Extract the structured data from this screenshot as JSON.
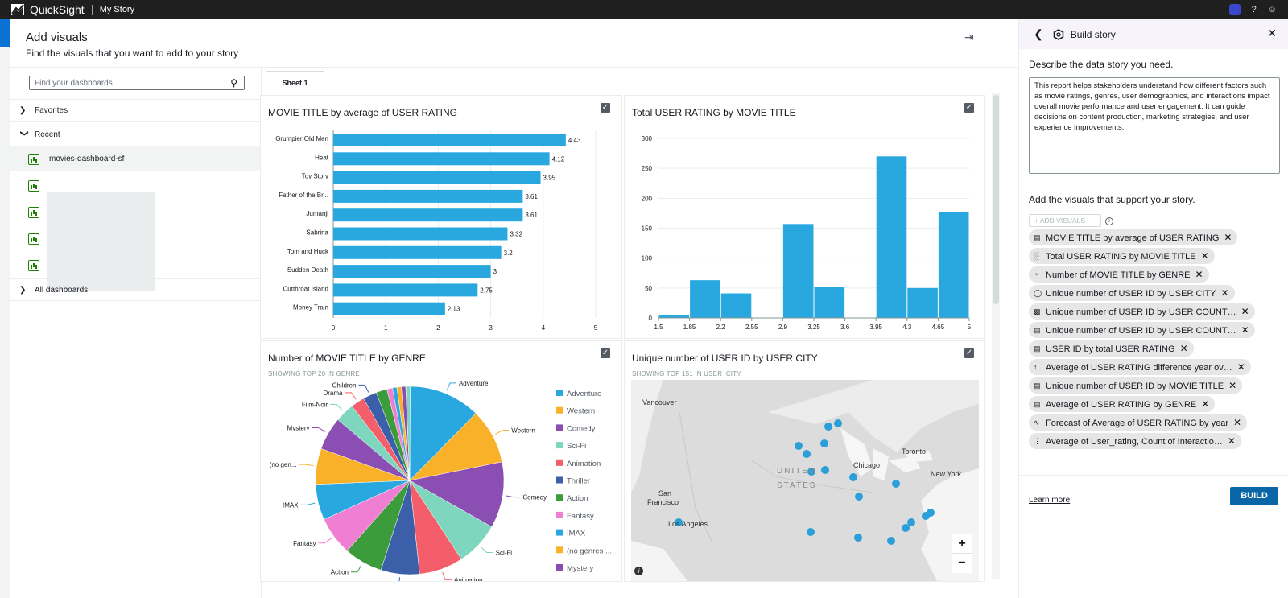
{
  "topbar": {
    "brand": "QuickSight",
    "story": "My Story"
  },
  "modal": {
    "title": "Add visuals",
    "subtitle": "Find the visuals that you want to add to your story"
  },
  "left": {
    "search_placeholder": "Find your dashboards",
    "favorites": "Favorites",
    "recent": "Recent",
    "selected_dashboard": "movies-dashboard-sf",
    "all_dashboards": "All dashboards"
  },
  "tabs": [
    {
      "label": "Sheet 1"
    }
  ],
  "visuals": {
    "bar_title": "MOVIE TITLE by average of USER RATING",
    "hist_title": "Total USER RATING by MOVIE TITLE",
    "pie_title": "Number of MOVIE TITLE by GENRE",
    "pie_sub": "SHOWING TOP 20 IN GENRE",
    "map_title": "Unique number of USER ID by USER CITY",
    "map_sub": "SHOWING TOP 151 IN USER_CITY"
  },
  "map": {
    "labels": [
      "Vancouver",
      "UNITED",
      "STATES",
      "Chicago",
      "Toronto",
      "New York",
      "San",
      "Francisco",
      "Los Angeles"
    ],
    "zoom_in": "+",
    "zoom_out": "−"
  },
  "chart_data": [
    {
      "type": "bar",
      "orientation": "horizontal",
      "title": "MOVIE TITLE by average of USER RATING",
      "categories": [
        "Grumpier Old Men",
        "Heat",
        "Toy Story",
        "Father of the Br...",
        "Jumanji",
        "Sabrina",
        "Tom and Huck",
        "Sudden Death",
        "Cutthroat Island",
        "Money Train"
      ],
      "values": [
        4.43,
        4.12,
        3.95,
        3.61,
        3.61,
        3.32,
        3.2,
        3,
        2.75,
        2.13
      ],
      "value_labels": [
        "4.43",
        "4.12",
        "3.95",
        "3.61",
        "3.61",
        "3.32",
        "3.2",
        "3",
        "2.75",
        "2.13"
      ],
      "xlim": [
        0,
        5
      ],
      "xticks": [
        "0",
        "1",
        "2",
        "3",
        "4",
        "5"
      ],
      "color": "#29a8e0"
    },
    {
      "type": "bar",
      "title": "Total USER RATING by MOVIE TITLE",
      "bins": [
        [
          1.5,
          1.85
        ],
        [
          1.85,
          2.2
        ],
        [
          2.2,
          2.55
        ],
        [
          2.55,
          2.9
        ],
        [
          2.9,
          3.25
        ],
        [
          3.25,
          3.6
        ],
        [
          3.6,
          3.95
        ],
        [
          3.95,
          4.3
        ],
        [
          4.3,
          4.65
        ],
        [
          4.65,
          5
        ]
      ],
      "values": [
        5,
        63,
        41,
        0,
        157,
        52,
        0,
        270,
        50,
        177
      ],
      "xticks": [
        "1.5",
        "1.85",
        "2.2",
        "2.55",
        "2.9",
        "3.25",
        "3.6",
        "3.95",
        "4.3",
        "4.65",
        "5"
      ],
      "yticks": [
        "0",
        "50",
        "100",
        "150",
        "200",
        "250",
        "300"
      ],
      "ylim": [
        0,
        300
      ],
      "color": "#29a8e0"
    },
    {
      "type": "pie",
      "title": "Number of MOVIE TITLE by GENRE",
      "slices": [
        {
          "label": "Adventure",
          "value": 13,
          "color": "#29a8e0"
        },
        {
          "label": "Western",
          "value": 10,
          "color": "#f9b12a"
        },
        {
          "label": "Comedy",
          "value": 12,
          "color": "#8b4fb4"
        },
        {
          "label": "Sci-Fi",
          "value": 8,
          "color": "#7dd6bd"
        },
        {
          "label": "Animation",
          "value": 8,
          "color": "#f45d6a"
        },
        {
          "label": "Thriller",
          "value": 7,
          "color": "#3b5fa8"
        },
        {
          "label": "Action",
          "value": 7,
          "color": "#3c9c3c"
        },
        {
          "label": "Fantasy",
          "value": 7,
          "color": "#f07ed2"
        },
        {
          "label": "IMAX",
          "value": 6.5,
          "color": "#29a8e0"
        },
        {
          "label": "(no gen...",
          "value": 6.5,
          "color": "#f9b12a"
        },
        {
          "label": "Mystery",
          "value": 6,
          "color": "#8b4fb4"
        },
        {
          "label": "Film-Noir",
          "value": 3.5,
          "color": "#7dd6bd"
        },
        {
          "label": "Drama",
          "value": 2.5,
          "color": "#f45d6a"
        },
        {
          "label": "Children",
          "value": 2.5,
          "color": "#3b5fa8"
        },
        {
          "label": "",
          "value": 2,
          "color": "#3c9c3c"
        },
        {
          "label": "",
          "value": 1,
          "color": "#f07ed2"
        },
        {
          "label": "",
          "value": 0.8,
          "color": "#29a8e0"
        },
        {
          "label": "",
          "value": 0.8,
          "color": "#f9b12a"
        },
        {
          "label": "",
          "value": 0.8,
          "color": "#8b4fb4"
        },
        {
          "label": "",
          "value": 0.8,
          "color": "#7dd6bd"
        }
      ],
      "legend": [
        {
          "label": "Adventure",
          "color": "#29a8e0"
        },
        {
          "label": "Western",
          "color": "#f9b12a"
        },
        {
          "label": "Comedy",
          "color": "#8b4fb4"
        },
        {
          "label": "Sci-Fi",
          "color": "#7dd6bd"
        },
        {
          "label": "Animation",
          "color": "#f45d6a"
        },
        {
          "label": "Thriller",
          "color": "#3b5fa8"
        },
        {
          "label": "Action",
          "color": "#3c9c3c"
        },
        {
          "label": "Fantasy",
          "color": "#f07ed2"
        },
        {
          "label": "IMAX",
          "color": "#29a8e0"
        },
        {
          "label": "(no genres ...",
          "color": "#f9b12a"
        },
        {
          "label": "Mystery",
          "color": "#8b4fb4"
        }
      ],
      "legend_position": "right"
    }
  ],
  "panel": {
    "title": "Build story",
    "describe_label": "Describe the data story you need.",
    "story_text": "This report helps stakeholders understand how different factors such as movie ratings, genres, user demographics, and interactions impact overall movie performance and user engagement. It can guide decisions on content production, marketing strategies, and user experience improvements.",
    "add_label": "Add the visuals that support your story.",
    "add_button": "+ ADD VISUALS",
    "chips": [
      {
        "label": "MOVIE TITLE by average of USER RATING",
        "icon": "hbar-icon"
      },
      {
        "label": "Total USER RATING by MOVIE TITLE",
        "icon": "histogram-icon"
      },
      {
        "label": "Number of MOVIE TITLE by GENRE",
        "icon": "pie-icon"
      },
      {
        "label": "Unique number of USER ID by USER CITY",
        "icon": "map-point-icon"
      },
      {
        "label": "Unique number of USER ID by USER COUNT…",
        "icon": "filled-map-icon"
      },
      {
        "label": "Unique number of USER ID by USER COUNT…",
        "icon": "hbar-icon"
      },
      {
        "label": "USER ID by total USER RATING",
        "icon": "hbar-icon"
      },
      {
        "label": "Average of USER RATING difference year ov…",
        "icon": "kpi-icon"
      },
      {
        "label": "Unique number of USER ID by MOVIE TITLE",
        "icon": "hbar-icon"
      },
      {
        "label": "Average of USER RATING by GENRE",
        "icon": "hbar-icon"
      },
      {
        "label": "Forecast of Average of USER RATING by year",
        "icon": "line-icon"
      },
      {
        "label": "Average of User_rating, Count of Interactio…",
        "icon": "scatter-icon"
      }
    ],
    "learn_more": "Learn more",
    "build": "BUILD"
  }
}
